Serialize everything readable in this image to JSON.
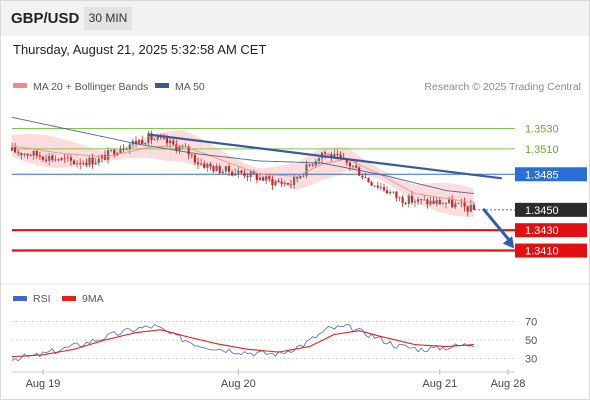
{
  "header": {
    "symbol": "GBP/USD",
    "timeframe": "30 MIN",
    "datetime": "Thursday, August 21, 2025 5:32:58 AM CET"
  },
  "legend": {
    "ma20_label": "MA 20 + Bollinger Bands",
    "ma50_label": "MA 50",
    "copyright": "Research © 2025 Trading Central",
    "ma20_color": "#f08a8a",
    "ma50_color": "#3a5a8c"
  },
  "rsi_legend": {
    "rsi_label": "RSI",
    "ma_label": "9MA",
    "rsi_color": "#4466cc",
    "ma_color": "#e8201a"
  },
  "levels": [
    {
      "value": 1.353,
      "label": "1.3530",
      "style": "green-text"
    },
    {
      "value": 1.351,
      "label": "1.3510",
      "style": "green-text"
    },
    {
      "value": 1.3485,
      "label": "1.3485",
      "style": "blue-box"
    },
    {
      "value": 1.345,
      "label": "1.3450",
      "style": "dark-box"
    },
    {
      "value": 1.343,
      "label": "1.3430",
      "style": "red-box"
    },
    {
      "value": 1.341,
      "label": "1.3410",
      "style": "red-box"
    }
  ],
  "colors": {
    "up": "#6b6b6b",
    "down": "#d42020",
    "support": "#e01010",
    "pivot": "#2a6fd6",
    "resistance": "#7ec850",
    "trendline": "#3a5a9c",
    "band_fill": "#fbd6d6"
  },
  "chart_data": [
    {
      "type": "candlestick",
      "title": "",
      "ylim": [
        1.3383,
        1.3558
      ],
      "x_labels": [
        "Aug 19",
        "Aug 20",
        "Aug 21",
        "Aug 28"
      ],
      "x_label_index": [
        10,
        73,
        138,
        160
      ],
      "candle_count": 150,
      "close_path": [
        [
          0,
          1.3508
        ],
        [
          10,
          1.3503
        ],
        [
          20,
          1.3497
        ],
        [
          28,
          1.3499
        ],
        [
          35,
          1.3512
        ],
        [
          44,
          1.3521
        ],
        [
          50,
          1.3516
        ],
        [
          56,
          1.3509
        ],
        [
          60,
          1.3497
        ],
        [
          66,
          1.349
        ],
        [
          75,
          1.3486
        ],
        [
          84,
          1.3478
        ],
        [
          90,
          1.3476
        ],
        [
          96,
          1.3494
        ],
        [
          100,
          1.3507
        ],
        [
          105,
          1.35
        ],
        [
          110,
          1.3493
        ],
        [
          115,
          1.3479
        ],
        [
          120,
          1.3471
        ],
        [
          125,
          1.3461
        ],
        [
          132,
          1.3458
        ],
        [
          140,
          1.3457
        ],
        [
          149,
          1.345
        ]
      ],
      "series": [
        {
          "name": "MA 20 + Bollinger Bands",
          "path": [
            [
              0,
              1.3513
            ],
            [
              15,
              1.3506
            ],
            [
              30,
              1.3502
            ],
            [
              45,
              1.3512
            ],
            [
              55,
              1.3513
            ],
            [
              65,
              1.3502
            ],
            [
              80,
              1.3485
            ],
            [
              92,
              1.3483
            ],
            [
              100,
              1.3495
            ],
            [
              108,
              1.35
            ],
            [
              118,
              1.3486
            ],
            [
              130,
              1.3466
            ],
            [
              149,
              1.3457
            ]
          ]
        },
        {
          "name": "MA 50",
          "path": [
            [
              0,
              1.3541
            ],
            [
              20,
              1.3528
            ],
            [
              40,
              1.3515
            ],
            [
              60,
              1.3505
            ],
            [
              80,
              1.3498
            ],
            [
              100,
              1.3496
            ],
            [
              120,
              1.3484
            ],
            [
              140,
              1.3469
            ],
            [
              149,
              1.3466
            ]
          ]
        }
      ],
      "trendline": [
        [
          44,
          1.3524
        ],
        [
          158,
          1.3481
        ]
      ],
      "forecast_arrow": [
        [
          152,
          1.3451
        ],
        [
          162,
          1.3412
        ]
      ],
      "band_width": 0.0013
    },
    {
      "type": "line",
      "title": "",
      "ylim": [
        22,
        78
      ],
      "y_ticks": [
        70,
        50,
        30
      ],
      "x_count": 150,
      "series": [
        {
          "name": "RSI",
          "path": [
            [
              0,
              30
            ],
            [
              8,
              33
            ],
            [
              16,
              40
            ],
            [
              24,
              47
            ],
            [
              32,
              55
            ],
            [
              40,
              62
            ],
            [
              46,
              65
            ],
            [
              52,
              55
            ],
            [
              60,
              45
            ],
            [
              68,
              40
            ],
            [
              78,
              36
            ],
            [
              86,
              35
            ],
            [
              94,
              45
            ],
            [
              102,
              62
            ],
            [
              108,
              64
            ],
            [
              116,
              55
            ],
            [
              124,
              44
            ],
            [
              132,
              40
            ],
            [
              140,
              42
            ],
            [
              149,
              46
            ]
          ]
        },
        {
          "name": "9MA",
          "path": [
            [
              0,
              32
            ],
            [
              10,
              34
            ],
            [
              20,
              40
            ],
            [
              30,
              50
            ],
            [
              40,
              58
            ],
            [
              48,
              61
            ],
            [
              56,
              54
            ],
            [
              66,
              46
            ],
            [
              76,
              40
            ],
            [
              86,
              37
            ],
            [
              96,
              43
            ],
            [
              104,
              56
            ],
            [
              112,
              60
            ],
            [
              120,
              53
            ],
            [
              130,
              45
            ],
            [
              140,
              43
            ],
            [
              149,
              45
            ]
          ]
        }
      ]
    }
  ]
}
